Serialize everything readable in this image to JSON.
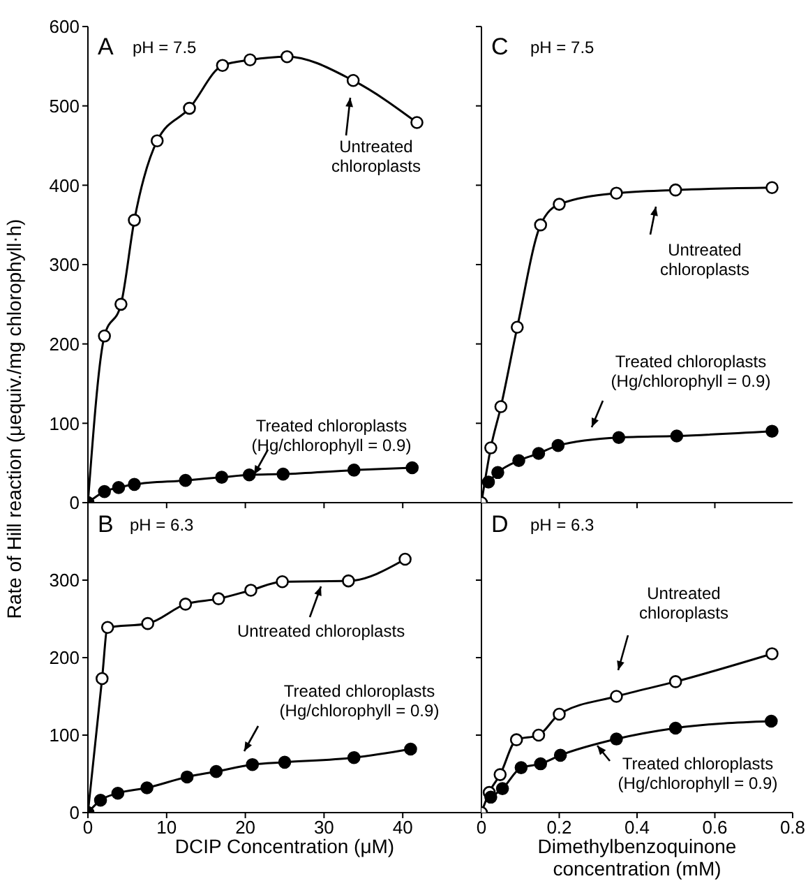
{
  "chart_data": [
    {
      "type": "line",
      "title": "A",
      "annotations": [
        "pH = 7.5"
      ],
      "ylabel": "Rate of Hill reaction (μequiv./mg chlorophyll·h)",
      "xlim": [
        0,
        50
      ],
      "xticks": [
        0,
        10,
        20,
        30,
        40
      ],
      "ylim": [
        0,
        600
      ],
      "yticks": [
        0,
        100,
        200,
        300,
        400,
        500,
        600
      ],
      "tick_labels": "y",
      "marker": "circle",
      "series": [
        {
          "name": "Untreated chloroplasts",
          "color": "#000000",
          "x": [
            0,
            2.1,
            4.2,
            5.9,
            8.8,
            12.9,
            17.1,
            20.6,
            25.3,
            33.7,
            41.8
          ],
          "values": [
            0,
            210,
            250,
            356,
            456,
            497,
            551,
            558,
            562,
            532,
            479
          ]
        },
        {
          "name": "Treated chloroplasts (Hg/chlorophyll = 0.9)",
          "color": "#000000",
          "x": [
            0,
            2.1,
            3.9,
            5.9,
            12.4,
            17,
            20.5,
            24.8,
            33.8,
            41.2
          ],
          "values": [
            0,
            14,
            19,
            23,
            28,
            32,
            35,
            36,
            41,
            44
          ]
        }
      ]
    },
    {
      "type": "line",
      "title": "B",
      "annotations": [
        "pH = 6.3"
      ],
      "xlabel": "DCIP Concentration (μM)",
      "xlim": [
        0,
        50
      ],
      "xticks": [
        0,
        10,
        20,
        30,
        40
      ],
      "ylim": [
        0,
        400
      ],
      "yticks": [
        0,
        100,
        200,
        300
      ],
      "marker": "circle",
      "series": [
        {
          "name": "Untreated chloroplasts",
          "color": "#000000",
          "x": [
            0,
            1.8,
            2.5,
            7.6,
            12.4,
            16.6,
            20.7,
            24.7,
            33.1,
            40.3
          ],
          "values": [
            0,
            173,
            239,
            244,
            269,
            276,
            287,
            298,
            299,
            327
          ]
        },
        {
          "name": "Treated chloroplasts (Hg/chlorophyll = 0.9)",
          "color": "#000000",
          "x": [
            0,
            1.6,
            3.8,
            7.5,
            12.6,
            16.3,
            20.9,
            25,
            33.8,
            41
          ],
          "values": [
            0,
            16,
            25,
            32,
            46,
            53,
            62,
            65,
            71,
            82
          ]
        }
      ]
    },
    {
      "type": "line",
      "title": "C",
      "annotations": [
        "pH = 7.5"
      ],
      "xlim": [
        0,
        0.8
      ],
      "xticks": [
        0,
        0.2,
        0.4,
        0.6
      ],
      "ylim": [
        0,
        600
      ],
      "yticks": [
        0,
        100,
        200,
        300,
        400,
        500,
        600
      ],
      "tick_labels": false,
      "marker": "circle",
      "series": [
        {
          "name": "Untreated chloroplasts",
          "color": "#000000",
          "x": [
            0,
            0.024,
            0.05,
            0.092,
            0.152,
            0.2,
            0.347,
            0.499,
            0.747
          ],
          "values": [
            0,
            69,
            121,
            221,
            350,
            376,
            390,
            394,
            397
          ]
        },
        {
          "name": "Treated chloroplasts (Hg/chlorophyll = 0.9)",
          "color": "#000000",
          "x": [
            0.018,
            0.042,
            0.096,
            0.147,
            0.197,
            0.353,
            0.502,
            0.747
          ],
          "values": [
            26,
            38,
            53,
            62,
            72,
            82,
            84,
            90
          ]
        }
      ]
    },
    {
      "type": "line",
      "title": "D",
      "annotations": [
        "pH = 6.3"
      ],
      "xlabel": "Dimethylbenzoquinone concentration (mM)",
      "xlim": [
        0,
        0.8
      ],
      "xticks": [
        0,
        0.2,
        0.4,
        0.6,
        0.8
      ],
      "ylim": [
        0,
        400
      ],
      "yticks": [
        0,
        100,
        200,
        300
      ],
      "tick_labels": "x",
      "marker": "circle",
      "series": [
        {
          "name": "Untreated chloroplasts",
          "color": "#000000",
          "x": [
            0,
            0.02,
            0.048,
            0.09,
            0.147,
            0.2,
            0.347,
            0.499,
            0.747
          ],
          "values": [
            0,
            26,
            49,
            94,
            100,
            127,
            150,
            169,
            205
          ]
        },
        {
          "name": "Treated chloroplasts (Hg/chlorophyll = 0.9)",
          "color": "#000000",
          "x": [
            0.024,
            0.054,
            0.102,
            0.152,
            0.203,
            0.347,
            0.499,
            0.745
          ],
          "values": [
            20,
            31,
            58,
            63,
            74,
            95,
            109,
            118
          ]
        }
      ]
    }
  ]
}
